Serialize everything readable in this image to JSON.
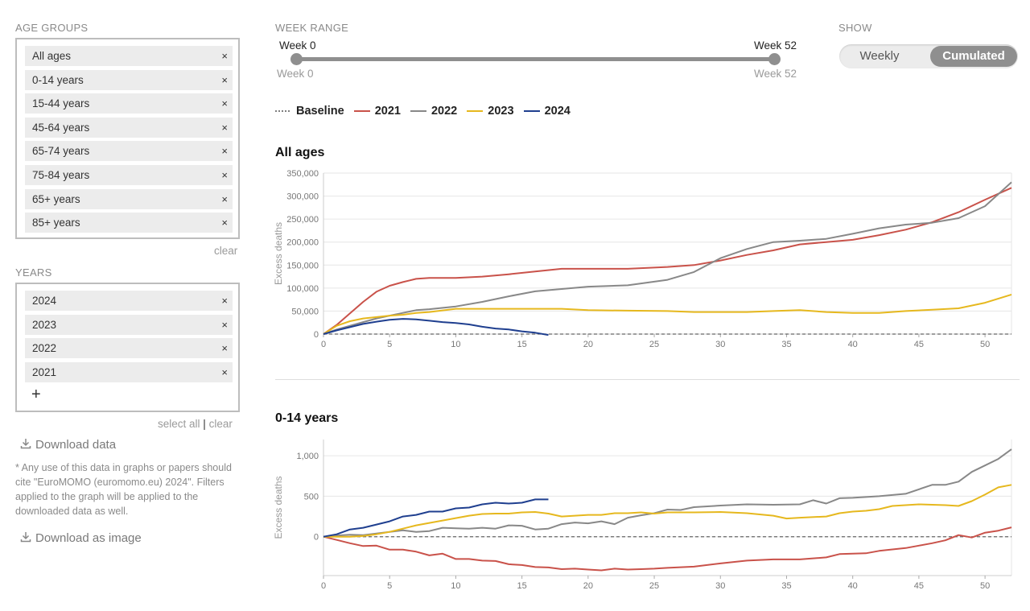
{
  "filters": {
    "age_groups_label": "AGE GROUPS",
    "age_groups": [
      "All ages",
      "0-14 years",
      "15-44 years",
      "45-64 years",
      "65-74 years",
      "75-84 years",
      "65+ years",
      "85+ years"
    ],
    "clear_label": "clear",
    "years_label": "YEARS",
    "years": [
      "2024",
      "2023",
      "2022",
      "2021"
    ],
    "add_symbol": "+",
    "select_all_label": "select all",
    "separator": "|",
    "remove_symbol": "×"
  },
  "week_range": {
    "label": "WEEK RANGE",
    "start_label": "Week 0",
    "end_label": "Week 52",
    "min_label": "Week 0",
    "max_label": "Week 52",
    "start": 0,
    "end": 52
  },
  "show": {
    "label": "SHOW",
    "options": [
      "Weekly",
      "Cumulated"
    ],
    "selected": "Cumulated"
  },
  "legend": {
    "baseline": "Baseline",
    "years": [
      "2021",
      "2022",
      "2023",
      "2024"
    ]
  },
  "downloads": {
    "data_label": "Download data",
    "image_label": "Download as image",
    "note": "* Any use of this data in graphs or papers should cite \"EuroMOMO (euromomo.eu) 2024\". Filters applied to the graph will be applied to the downloaded data as well."
  },
  "colors": {
    "2021": "#c9524a",
    "2022": "#888888",
    "2023": "#e6b81e",
    "2024": "#1f3f8f",
    "baseline": "#666666",
    "slider": "#8f8f8f"
  },
  "chart_data": [
    {
      "type": "line",
      "title": "All ages",
      "ylabel": "Excess deaths",
      "xlabel": "",
      "xlim": [
        0,
        52
      ],
      "ylim": [
        0,
        350000
      ],
      "xticks": [
        0,
        5,
        10,
        15,
        20,
        25,
        30,
        35,
        40,
        45,
        50
      ],
      "yticks": [
        0,
        50000,
        100000,
        150000,
        200000,
        250000,
        300000,
        350000
      ],
      "ytick_labels": [
        "0",
        "50,000",
        "100,000",
        "150,000",
        "200,000",
        "250,000",
        "300,000",
        "350,000"
      ],
      "grid": true,
      "series": [
        {
          "name": "2021",
          "x": [
            0,
            1,
            2,
            3,
            4,
            5,
            6,
            7,
            8,
            10,
            12,
            14,
            16,
            18,
            20,
            23,
            26,
            28,
            30,
            32,
            34,
            36,
            38,
            40,
            42,
            44,
            46,
            48,
            50,
            52
          ],
          "y": [
            0,
            20000,
            45000,
            70000,
            92000,
            105000,
            113000,
            120000,
            122000,
            122000,
            125000,
            130000,
            136000,
            142000,
            142000,
            142000,
            146000,
            150000,
            160000,
            172000,
            182000,
            195000,
            200000,
            205000,
            215000,
            227000,
            243000,
            265000,
            292000,
            318000
          ]
        },
        {
          "name": "2022",
          "x": [
            0,
            1,
            2,
            3,
            4,
            5,
            6,
            7,
            8,
            10,
            12,
            14,
            16,
            18,
            20,
            23,
            26,
            28,
            30,
            32,
            34,
            36,
            38,
            40,
            42,
            44,
            46,
            48,
            50,
            52
          ],
          "y": [
            0,
            10000,
            18000,
            26000,
            34000,
            40000,
            46000,
            52000,
            54000,
            60000,
            70000,
            82000,
            93000,
            98000,
            103000,
            106000,
            118000,
            135000,
            165000,
            185000,
            200000,
            203000,
            207000,
            218000,
            230000,
            238000,
            242000,
            252000,
            278000,
            330000
          ]
        },
        {
          "name": "2023",
          "x": [
            0,
            1,
            2,
            3,
            4,
            5,
            6,
            7,
            8,
            10,
            12,
            14,
            16,
            18,
            20,
            23,
            26,
            28,
            30,
            32,
            34,
            36,
            38,
            40,
            42,
            44,
            46,
            48,
            50,
            52
          ],
          "y": [
            0,
            18000,
            28000,
            34000,
            37000,
            40000,
            42000,
            46000,
            48000,
            55000,
            55000,
            55000,
            55000,
            55000,
            52000,
            51000,
            50000,
            48000,
            48000,
            48000,
            50000,
            52000,
            48000,
            46000,
            46000,
            50000,
            53000,
            56000,
            68000,
            86000
          ]
        },
        {
          "name": "2024",
          "x": [
            0,
            1,
            2,
            3,
            4,
            5,
            6,
            7,
            8,
            9,
            10,
            11,
            12,
            13,
            14,
            15,
            16,
            17
          ],
          "y": [
            0,
            8000,
            15000,
            22000,
            27000,
            31000,
            33000,
            32000,
            29000,
            26000,
            24000,
            21000,
            16000,
            12000,
            10000,
            6000,
            3000,
            -2000
          ]
        }
      ],
      "baseline": 0
    },
    {
      "type": "line",
      "title": "0-14 years",
      "ylabel": "Excess deaths",
      "xlabel": "",
      "xlim": [
        0,
        52
      ],
      "ylim": [
        -480,
        1200
      ],
      "xticks": [
        0,
        5,
        10,
        15,
        20,
        25,
        30,
        35,
        40,
        45,
        50
      ],
      "yticks": [
        0,
        500,
        1000
      ],
      "ytick_labels": [
        "0",
        "500",
        "1,000"
      ],
      "grid": true,
      "series": [
        {
          "name": "2021",
          "x": [
            0,
            1,
            2,
            3,
            4,
            5,
            6,
            7,
            8,
            9,
            10,
            11,
            12,
            13,
            14,
            15,
            16,
            17,
            18,
            19,
            20,
            21,
            22,
            23,
            24,
            25,
            26,
            28,
            30,
            32,
            34,
            36,
            38,
            39,
            40,
            41,
            42,
            44,
            45,
            46,
            47,
            48,
            49,
            50,
            51,
            52
          ],
          "y": [
            0,
            -40,
            -80,
            -115,
            -110,
            -160,
            -160,
            -185,
            -230,
            -210,
            -275,
            -275,
            -295,
            -300,
            -340,
            -350,
            -375,
            -380,
            -400,
            -395,
            -405,
            -415,
            -395,
            -405,
            -400,
            -395,
            -385,
            -370,
            -330,
            -295,
            -280,
            -280,
            -255,
            -215,
            -210,
            -205,
            -175,
            -140,
            -110,
            -80,
            -45,
            20,
            -10,
            50,
            75,
            115
          ]
        },
        {
          "name": "2022",
          "x": [
            0,
            1,
            2,
            3,
            4,
            5,
            6,
            7,
            8,
            9,
            10,
            11,
            12,
            13,
            14,
            15,
            16,
            17,
            18,
            19,
            20,
            21,
            22,
            23,
            24,
            25,
            26,
            27,
            28,
            30,
            32,
            34,
            36,
            37,
            38,
            39,
            40,
            42,
            44,
            46,
            47,
            48,
            49,
            50,
            51,
            52
          ],
          "y": [
            0,
            15,
            25,
            20,
            40,
            60,
            80,
            60,
            70,
            110,
            105,
            100,
            110,
            100,
            140,
            135,
            90,
            100,
            155,
            175,
            165,
            190,
            155,
            235,
            265,
            290,
            335,
            330,
            365,
            385,
            400,
            395,
            400,
            450,
            410,
            475,
            480,
            500,
            530,
            640,
            640,
            680,
            800,
            880,
            960,
            1080
          ]
        },
        {
          "name": "2023",
          "x": [
            0,
            1,
            2,
            3,
            4,
            5,
            6,
            7,
            8,
            9,
            10,
            11,
            12,
            13,
            14,
            15,
            16,
            17,
            18,
            20,
            21,
            22,
            23,
            24,
            25,
            26,
            27,
            28,
            30,
            32,
            34,
            35,
            36,
            38,
            39,
            40,
            41,
            42,
            43,
            44,
            45,
            46,
            47,
            48,
            49,
            50,
            51,
            52
          ],
          "y": [
            0,
            0,
            0,
            10,
            30,
            60,
            100,
            140,
            170,
            200,
            230,
            260,
            280,
            285,
            285,
            300,
            305,
            285,
            250,
            270,
            270,
            290,
            290,
            300,
            285,
            300,
            300,
            300,
            305,
            290,
            260,
            225,
            235,
            250,
            290,
            310,
            320,
            340,
            380,
            390,
            400,
            395,
            390,
            380,
            440,
            520,
            610,
            640
          ]
        },
        {
          "name": "2024",
          "x": [
            0,
            1,
            2,
            3,
            4,
            5,
            6,
            7,
            8,
            9,
            10,
            11,
            12,
            13,
            14,
            15,
            16,
            17
          ],
          "y": [
            0,
            30,
            90,
            110,
            150,
            190,
            250,
            270,
            310,
            310,
            350,
            360,
            400,
            420,
            410,
            420,
            460,
            460
          ]
        }
      ],
      "baseline": 0
    }
  ]
}
